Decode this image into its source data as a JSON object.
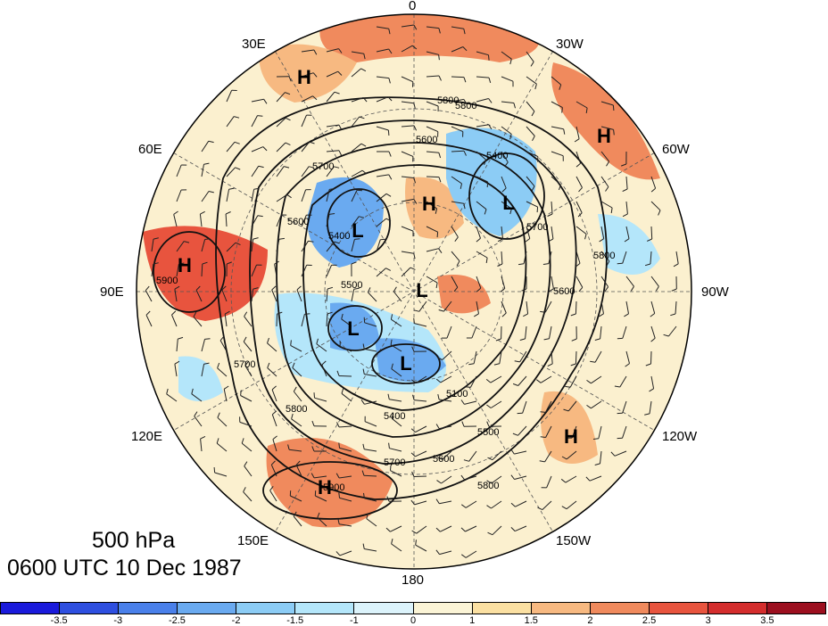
{
  "figure": {
    "level_label": "500 hPa",
    "timestamp": "0600 UTC 10 Dec 1987"
  },
  "longitude_labels": [
    "0",
    "30W",
    "60W",
    "90W",
    "120W",
    "150W",
    "180",
    "150E",
    "120E",
    "90E",
    "60E",
    "30E"
  ],
  "contour_labels": [
    "5800",
    "5800",
    "5600",
    "5400",
    "5700",
    "5600",
    "5400",
    "5500",
    "5700",
    "5800",
    "5900",
    "5700",
    "5600",
    "5500",
    "5400",
    "5100",
    "5800",
    "5600",
    "5700",
    "5800",
    "5900"
  ],
  "pressure_centers": [
    {
      "type": "H",
      "lon_label": "30E"
    },
    {
      "type": "H",
      "lon_label": "60W"
    },
    {
      "type": "H",
      "lon_label": "0"
    },
    {
      "type": "L",
      "lon_label": "30W"
    },
    {
      "type": "L",
      "lon_label": "60E"
    },
    {
      "type": "H",
      "lon_label": "90E"
    },
    {
      "type": "L",
      "lon_label": "90W"
    },
    {
      "type": "L",
      "lon_label": "120E"
    },
    {
      "type": "L",
      "lon_label": "150E"
    },
    {
      "type": "H",
      "lon_label": "120W"
    },
    {
      "type": "H",
      "lon_label": "150E"
    }
  ],
  "colorbar": {
    "ticks": [
      "-3.5",
      "-3",
      "-2.5",
      "-2",
      "-1.5",
      "-1",
      "0",
      "1",
      "1.5",
      "2",
      "2.5",
      "3",
      "3.5"
    ],
    "colors": [
      "#1a1adb",
      "#2e4fe0",
      "#4a80ea",
      "#6aaaf0",
      "#8cccf5",
      "#b4e6fa",
      "#dcf3fb",
      "#fbf4d6",
      "#fbe0a2",
      "#f7b981",
      "#f08a5d",
      "#e8543e",
      "#d42d2d",
      "#9c0f1f"
    ]
  }
}
